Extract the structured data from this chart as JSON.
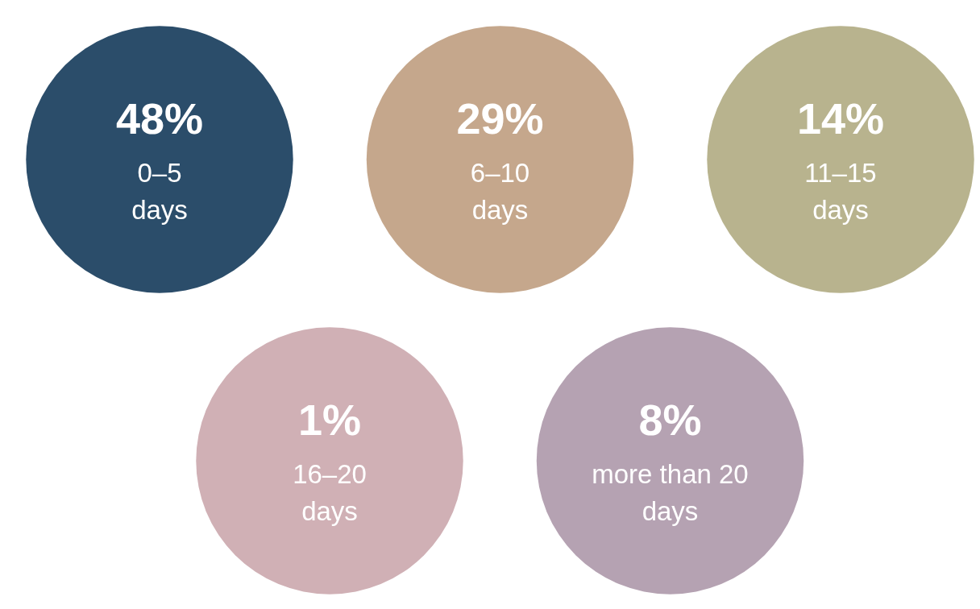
{
  "chart_data": {
    "type": "other",
    "categories": [
      "0–5 days",
      "6–10 days",
      "11–15 days",
      "16–20 days",
      "more than 20 days"
    ],
    "values": [
      48,
      29,
      14,
      1,
      8
    ],
    "value_labels": [
      "48%",
      "29%",
      "14%",
      "1%",
      "8%"
    ],
    "colors": [
      "#2b4d6a",
      "#c5a78c",
      "#b8b38e",
      "#d0b0b5",
      "#b5a2b2"
    ]
  }
}
